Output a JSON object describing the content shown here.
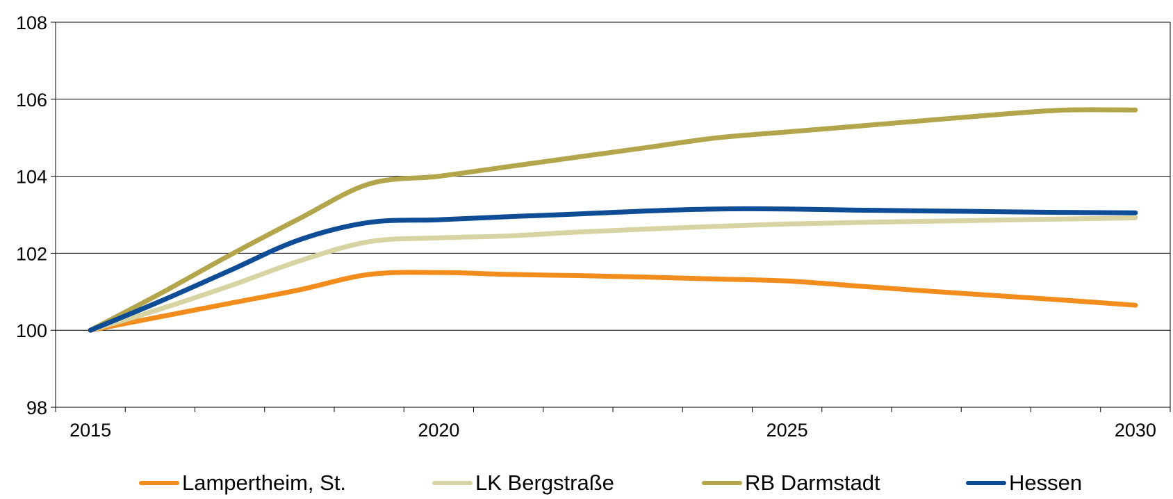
{
  "chart_data": {
    "type": "line",
    "title": "",
    "xlabel": "",
    "ylabel": "",
    "x": [
      2015,
      2016,
      2017,
      2018,
      2019,
      2020,
      2021,
      2022,
      2023,
      2024,
      2025,
      2026,
      2027,
      2028,
      2029,
      2030
    ],
    "x_ticks": [
      "2015",
      "2020",
      "2025",
      "2030"
    ],
    "y_ticks": [
      "98",
      "100",
      "102",
      "104",
      "106",
      "108"
    ],
    "xlim": [
      2014.5,
      2030.5
    ],
    "ylim": [
      98,
      108
    ],
    "grid": "horizontal",
    "legend_position": "bottom",
    "series": [
      {
        "name": "Lampertheim, St.",
        "color": "#f28c1c",
        "values": [
          100.0,
          100.35,
          100.7,
          101.05,
          101.45,
          101.5,
          101.45,
          101.42,
          101.38,
          101.33,
          101.28,
          101.15,
          101.02,
          100.9,
          100.78,
          100.65
        ]
      },
      {
        "name": "LK Bergstraße",
        "color": "#d8d3a2",
        "values": [
          100.0,
          100.55,
          101.15,
          101.8,
          102.3,
          102.4,
          102.45,
          102.55,
          102.63,
          102.7,
          102.76,
          102.8,
          102.83,
          102.86,
          102.89,
          102.92
        ]
      },
      {
        "name": "RB Darmstadt",
        "color": "#b3a54b",
        "values": [
          100.0,
          100.95,
          101.95,
          102.9,
          103.8,
          104.0,
          104.25,
          104.5,
          104.75,
          105.0,
          105.15,
          105.3,
          105.45,
          105.6,
          105.72,
          105.72
        ]
      },
      {
        "name": "Hessen",
        "color": "#0e4c96",
        "values": [
          100.0,
          100.75,
          101.55,
          102.35,
          102.8,
          102.87,
          102.95,
          103.02,
          103.1,
          103.15,
          103.15,
          103.12,
          103.1,
          103.08,
          103.06,
          103.05
        ]
      }
    ]
  }
}
